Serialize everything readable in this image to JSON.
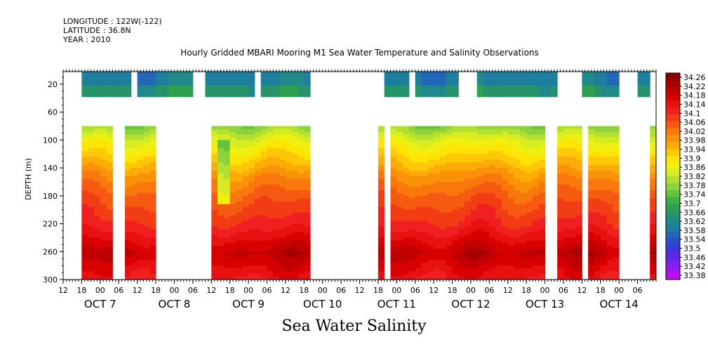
{
  "header": {
    "longitude": "LONGITUDE : 122W(-122)",
    "latitude": "LATITUDE : 36.8N",
    "year": "YEAR : 2010"
  },
  "title": "Hourly Gridded MBARI Mooring M1 Sea Water Temperature and Salinity Observations",
  "bottom_title": "Sea Water Salinity",
  "chart_data": {
    "type": "heatmap",
    "title": "Hourly Gridded MBARI Mooring M1 Sea Water Temperature and Salinity Observations",
    "ylabel": "DEPTH (m)",
    "xlabel": "",
    "y_ticks": [
      20,
      60,
      100,
      140,
      180,
      220,
      260,
      300
    ],
    "y_reversed": true,
    "hour_ticks": [
      "12",
      "18",
      "00",
      "06",
      "12",
      "18",
      "00",
      "06",
      "12",
      "18",
      "00",
      "06",
      "12",
      "18",
      "00",
      "06",
      "12",
      "18",
      "00",
      "06",
      "12",
      "18",
      "00",
      "06",
      "12",
      "18",
      "00",
      "06",
      "12",
      "18",
      "00",
      "06"
    ],
    "day_labels": [
      "OCT  7",
      "OCT  8",
      "OCT  9",
      "OCT 10",
      "OCT 11",
      "OCT 12",
      "OCT 13",
      "OCT 14"
    ],
    "colorbar_ticks": [
      "34.26",
      "34.22",
      "34.18",
      "34.14",
      "34.1",
      "34.06",
      "34.02",
      "33.98",
      "33.94",
      "33.9",
      "33.86",
      "33.82",
      "33.78",
      "33.74",
      "33.7",
      "33.66",
      "33.62",
      "33.58",
      "33.54",
      "33.5",
      "33.46",
      "33.42",
      "33.38"
    ],
    "colorbar_colors": [
      "#8a0000",
      "#a40000",
      "#c00000",
      "#d80000",
      "#e81010",
      "#f02020",
      "#f23c14",
      "#f55a10",
      "#f8780c",
      "#fa9208",
      "#fcac06",
      "#fec806",
      "#ffe404",
      "#eef010",
      "#d4ec24",
      "#b0e030",
      "#8cd23c",
      "#66c43c",
      "#40b040",
      "#2ea050",
      "#26946a",
      "#208a8a",
      "#1e7e9e",
      "#2266b8",
      "#2a4ecc",
      "#3838dc",
      "#5a2ae6",
      "#7a22ee",
      "#9a18f4",
      "#c010f8"
    ],
    "profile": [
      {
        "depth": 20,
        "value": 33.58
      },
      {
        "depth": 30,
        "value": 33.64
      },
      {
        "depth": 80,
        "value": 33.78
      },
      {
        "depth": 100,
        "value": 33.86
      },
      {
        "depth": 130,
        "value": 33.94
      },
      {
        "depth": 150,
        "value": 34.0
      },
      {
        "depth": 180,
        "value": 34.06
      },
      {
        "depth": 220,
        "value": 34.12
      },
      {
        "depth": 260,
        "value": 34.22
      },
      {
        "depth": 300,
        "value": 34.14
      }
    ],
    "surface_gap_ranges_hours": [
      [
        0,
        6
      ],
      [
        22,
        24
      ],
      [
        42,
        45
      ],
      [
        62,
        63
      ],
      [
        80,
        104
      ],
      [
        111,
        113
      ],
      [
        128,
        134
      ],
      [
        160,
        167
      ],
      [
        180,
        185
      ],
      [
        189,
        195
      ]
    ],
    "deep_gap_ranges_hours": [
      [
        0,
        6
      ],
      [
        16,
        19
      ],
      [
        30,
        48
      ],
      [
        80,
        102
      ],
      [
        104,
        106
      ],
      [
        156,
        160
      ],
      [
        167,
        169
      ],
      [
        180,
        190
      ]
    ],
    "low_salinity_intrusion": {
      "hour": 51,
      "depth_top": 100,
      "depth_bottom": 190,
      "min_value": 33.5
    }
  }
}
